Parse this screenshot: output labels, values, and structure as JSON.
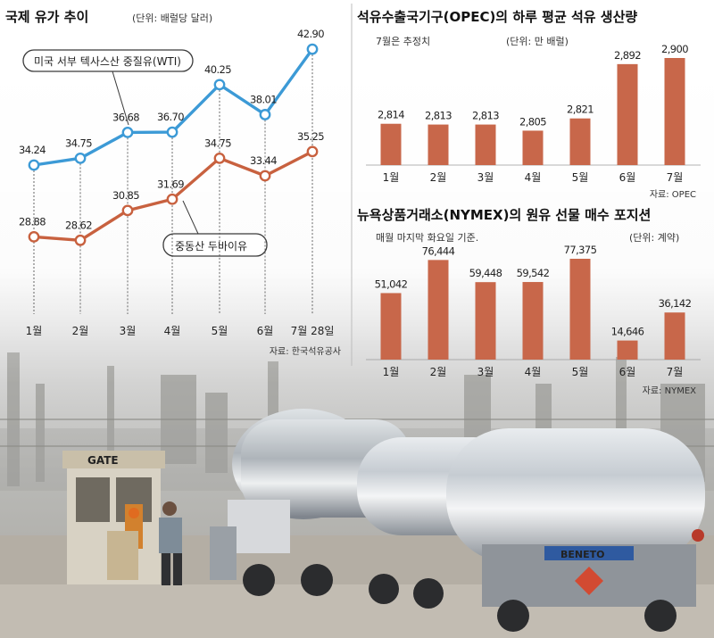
{
  "chart_data": [
    {
      "type": "line",
      "title": "국제 유가 추이",
      "unit_note": "(단위: 배럴당 달러)",
      "categories": [
        "1월",
        "2월",
        "3월",
        "4월",
        "5월",
        "6월",
        "7월 28일"
      ],
      "series": [
        {
          "name": "미국 서부 텍사스산 중질유(WTI)",
          "values": [
            34.24,
            34.75,
            36.68,
            36.7,
            40.25,
            38.01,
            42.9
          ],
          "color": "#3c9ad6"
        },
        {
          "name": "중동산 두바이유",
          "values": [
            28.88,
            28.62,
            30.85,
            31.69,
            34.75,
            33.44,
            35.25
          ],
          "color": "#c8613f"
        }
      ],
      "value_labels": [
        "34.24",
        "34.75",
        "36.68",
        "36.70",
        "40.25",
        "38.01",
        "42.90",
        "28.88",
        "28.62",
        "30.85",
        "31.69",
        "34.75",
        "33.44",
        "35.25"
      ],
      "source": "자료: 한국석유공사",
      "grid": false,
      "legend": "callout labels"
    },
    {
      "type": "bar",
      "title": "석유수출국기구(OPEC)의 하루 평균 석유 생산량",
      "note": "7월은 추정치",
      "unit_note": "(단위: 만 배럴)",
      "categories": [
        "1월",
        "2월",
        "3월",
        "4월",
        "5월",
        "6월",
        "7월"
      ],
      "values": [
        2814,
        2813,
        2813,
        2805,
        2821,
        2892,
        2900
      ],
      "value_labels": [
        "2,814",
        "2,813",
        "2,813",
        "2,805",
        "2,821",
        "2,892",
        "2,900"
      ],
      "source": "자료: OPEC",
      "color": "#c8674a"
    },
    {
      "type": "bar",
      "title": "뉴욕상품거래소(NYMEX)의 원유 선물 매수 포지션",
      "note": "매월 마지막 화요일 기준.",
      "unit_note": "(단위: 계약)",
      "categories": [
        "1월",
        "2월",
        "3월",
        "4월",
        "5월",
        "6월",
        "7월"
      ],
      "values": [
        51042,
        76444,
        59448,
        59542,
        77375,
        14646,
        36142
      ],
      "value_labels": [
        "51,042",
        "76,444",
        "59,448",
        "59,542",
        "77,375",
        "14,646",
        "36,142"
      ],
      "source": "자료: NYMEX",
      "color": "#c8674a"
    }
  ],
  "photo": {
    "gate_sign": "GATE",
    "truck_brand": "BENETO"
  }
}
